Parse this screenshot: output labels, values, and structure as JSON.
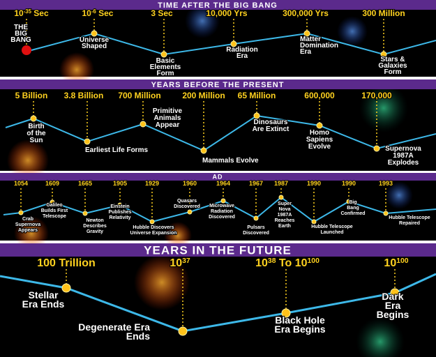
{
  "panels": [
    {
      "title": "TIME AFTER THE BIG BANG",
      "events": [
        {
          "time": [
            "10",
            "-35",
            " Sec"
          ],
          "label": [
            "THE",
            "BIG",
            "BANG"
          ]
        },
        {
          "time": [
            "10",
            "-6",
            " Sec"
          ],
          "label": [
            "Universe",
            "Shaped"
          ]
        },
        {
          "time": [
            "3 Sec"
          ],
          "label": [
            "Basic",
            "Elements",
            "Form"
          ]
        },
        {
          "time": [
            "10,000 Yrs"
          ],
          "label": [
            "Radiation",
            "Era"
          ]
        },
        {
          "time": [
            "300,000 Yrs"
          ],
          "label": [
            "Matter",
            "Domination",
            "Era"
          ]
        },
        {
          "time": [
            "300 Million"
          ],
          "label": [
            "Stars &",
            "Galaxies",
            "Form"
          ]
        }
      ]
    },
    {
      "title": "YEARS BEFORE THE PRESENT",
      "events": [
        {
          "time": [
            "5 Billion"
          ],
          "label": [
            "Birth",
            "of the",
            "Sun"
          ]
        },
        {
          "time": [
            "3.8 Billion"
          ],
          "label": [
            "Earliest Life Forms"
          ]
        },
        {
          "time": [
            "700 Million"
          ],
          "label": [
            "Primitive",
            "Animals",
            "Appear"
          ]
        },
        {
          "time": [
            "200 Million"
          ],
          "label": [
            "Mammals Evolve"
          ]
        },
        {
          "time": [
            "65 Million"
          ],
          "label": [
            "Dinosaurs",
            "Are Extinct"
          ]
        },
        {
          "time": [
            "600,000"
          ],
          "label": [
            "Homo",
            "Sapiens",
            "Evolve"
          ]
        },
        {
          "time": [
            "170,000"
          ],
          "label": [
            "Supernova",
            "1987A",
            "Explodes"
          ]
        }
      ]
    },
    {
      "title": "AD",
      "events": [
        {
          "time": [
            "1054"
          ],
          "label": [
            "Crab",
            "Supernova",
            "Appears"
          ]
        },
        {
          "time": [
            "1609"
          ],
          "label": [
            "Galileo",
            "Builds First",
            "Telescope"
          ]
        },
        {
          "time": [
            "1665"
          ],
          "label": [
            "Newton",
            "Describes",
            "Gravity"
          ]
        },
        {
          "time": [
            "1905"
          ],
          "label": [
            "Einstein",
            "Publishes",
            "Relativity"
          ]
        },
        {
          "time": [
            "1929"
          ],
          "label": [
            "Hubble Discovers",
            "Universe Expansion"
          ]
        },
        {
          "time": [
            "1960"
          ],
          "label": [
            "Quasars",
            "Discovered"
          ]
        },
        {
          "time": [
            "1964"
          ],
          "label": [
            "Microwave",
            "Radiation",
            "Discovered"
          ]
        },
        {
          "time": [
            "1967"
          ],
          "label": [
            "Pulsars",
            "Discovered"
          ]
        },
        {
          "time": [
            "1987"
          ],
          "label": [
            "Super",
            "Nova",
            "1987A",
            "Reaches",
            "Earth"
          ]
        },
        {
          "time": [
            "1990"
          ],
          "label": [
            "Hubble Telescope",
            "Launched"
          ]
        },
        {
          "time": [
            "1990"
          ],
          "label": [
            "Big",
            "Bang",
            "Confirmed"
          ]
        },
        {
          "time": [
            "1993"
          ],
          "label": [
            "Hubble Telescope",
            "Repaired"
          ]
        }
      ]
    },
    {
      "title": "YEARS IN THE FUTURE",
      "events": [
        {
          "time": [
            "100 Trillion"
          ],
          "label": [
            "Stellar",
            "Era Ends"
          ]
        },
        {
          "time": [
            "10",
            "37"
          ],
          "label": [
            "Degenerate Era",
            "Ends"
          ]
        },
        {
          "time": [
            "10",
            "38",
            " To 10",
            "100"
          ],
          "label": [
            "Black Hole",
            "Era Begins"
          ]
        },
        {
          "time": [
            "10",
            "100"
          ],
          "label": [
            "Dark",
            "Era",
            "Begins"
          ]
        }
      ]
    }
  ]
}
